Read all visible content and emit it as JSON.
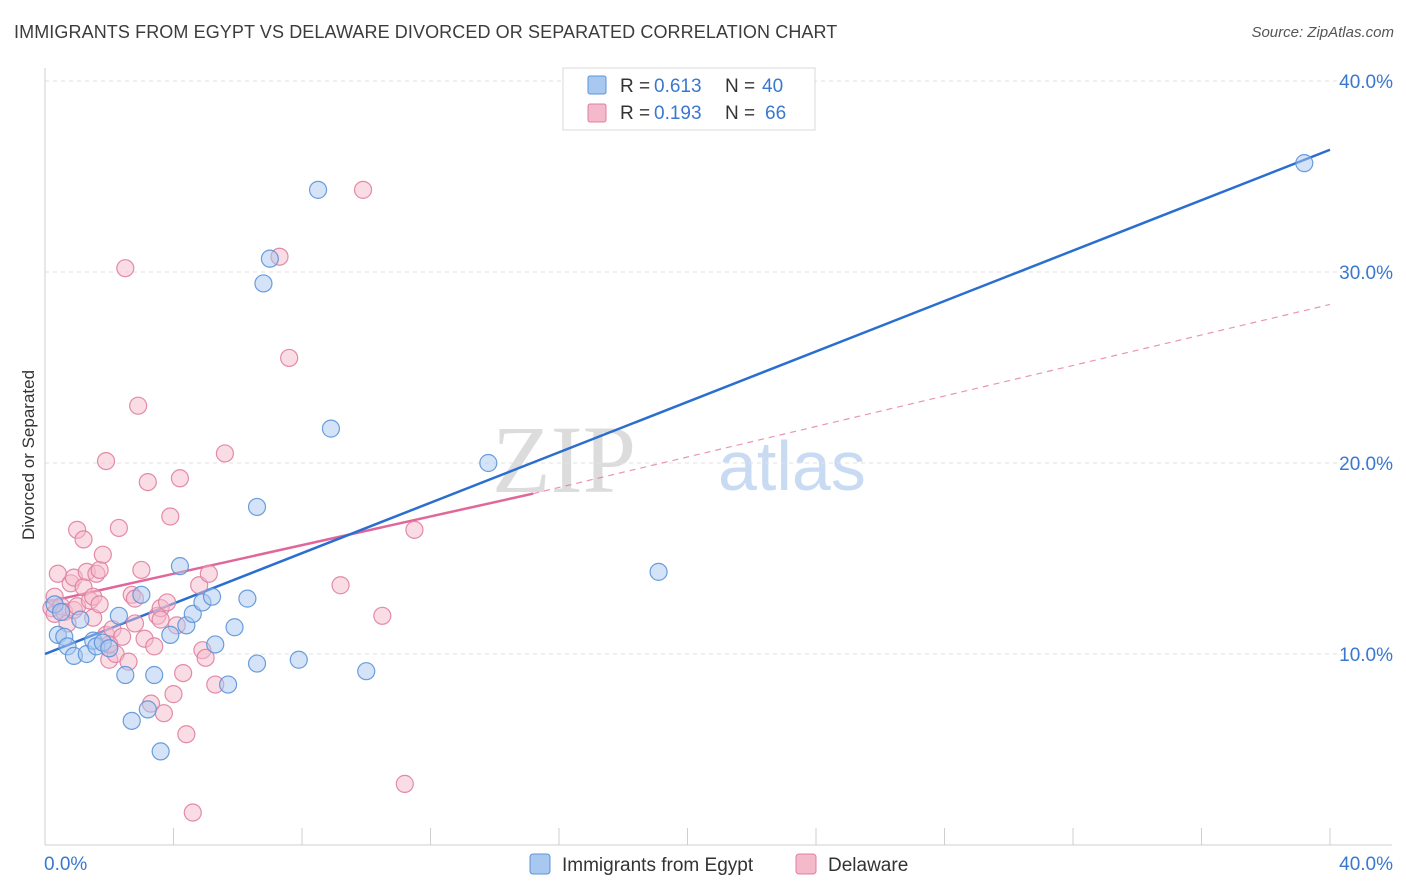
{
  "title": "IMMIGRANTS FROM EGYPT VS DELAWARE DIVORCED OR SEPARATED CORRELATION CHART",
  "source": "Source: ZipAtlas.com",
  "watermark": {
    "zip": "ZIP",
    "atlas": "atlas"
  },
  "colors": {
    "blue_fill": "#a9c8f0",
    "blue_stroke": "#5b93d8",
    "blue_line": "#2a6fcf",
    "pink_fill": "#f5b9cc",
    "pink_stroke": "#e07fa1",
    "pink_line": "#e0679a",
    "axis_text": "#3a78d0",
    "grid": "#e2e2e2"
  },
  "legend_top": [
    {
      "r_label": "R = ",
      "r_value": "0.613",
      "n_label": "N = ",
      "n_value": "40",
      "color": "blue"
    },
    {
      "r_label": "R = ",
      "r_value": "0.193",
      "n_label": "N = ",
      "n_value": "66",
      "color": "pink"
    }
  ],
  "chart_data": {
    "type": "scatter",
    "title": "IMMIGRANTS FROM EGYPT VS DELAWARE DIVORCED OR SEPARATED CORRELATION CHART",
    "xlabel": "",
    "ylabel": "Divorced or Separated",
    "xlim": [
      0,
      40
    ],
    "ylim": [
      0,
      40
    ],
    "x_tick_labels": [
      "0.0%",
      "40.0%"
    ],
    "y_tick_labels": [
      "10.0%",
      "20.0%",
      "30.0%",
      "40.0%"
    ],
    "y_ticks": [
      10,
      20,
      30,
      40
    ],
    "grid": true,
    "legend_position": "bottom-center",
    "series": [
      {
        "name": "Immigrants from Egypt",
        "color": "blue",
        "r": 0.613,
        "n": 40,
        "trend": {
          "x": [
            0,
            40
          ],
          "y": [
            10.0,
            36.4
          ],
          "style": "solid"
        },
        "points": [
          [
            0.3,
            12.6
          ],
          [
            0.4,
            11.0
          ],
          [
            0.5,
            12.2
          ],
          [
            0.6,
            10.9
          ],
          [
            0.7,
            10.4
          ],
          [
            0.9,
            9.9
          ],
          [
            1.1,
            11.8
          ],
          [
            1.3,
            10.0
          ],
          [
            1.5,
            10.7
          ],
          [
            1.6,
            10.4
          ],
          [
            1.8,
            10.6
          ],
          [
            2.0,
            10.3
          ],
          [
            2.3,
            12.0
          ],
          [
            2.5,
            8.9
          ],
          [
            2.7,
            6.5
          ],
          [
            3.0,
            13.1
          ],
          [
            3.2,
            7.1
          ],
          [
            3.4,
            8.9
          ],
          [
            3.6,
            4.9
          ],
          [
            3.9,
            11.0
          ],
          [
            4.2,
            14.6
          ],
          [
            4.4,
            11.5
          ],
          [
            4.6,
            12.1
          ],
          [
            4.9,
            12.7
          ],
          [
            5.2,
            13.0
          ],
          [
            5.3,
            10.5
          ],
          [
            5.7,
            8.4
          ],
          [
            5.9,
            11.4
          ],
          [
            6.3,
            12.9
          ],
          [
            6.6,
            17.7
          ],
          [
            6.6,
            9.5
          ],
          [
            6.8,
            29.4
          ],
          [
            7.0,
            30.7
          ],
          [
            7.9,
            9.7
          ],
          [
            8.5,
            34.3
          ],
          [
            8.9,
            21.8
          ],
          [
            10.0,
            9.1
          ],
          [
            13.8,
            20.0
          ],
          [
            19.1,
            14.3
          ],
          [
            39.2,
            35.7
          ]
        ]
      },
      {
        "name": "Delaware",
        "color": "pink",
        "r": 0.193,
        "n": 66,
        "trend": {
          "x": [
            0,
            15.2
          ],
          "y": [
            12.7,
            18.4
          ],
          "style": "solid",
          "extension": {
            "x": [
              15.2,
              40
            ],
            "y": [
              18.4,
              28.3
            ],
            "style": "dashed"
          }
        },
        "points": [
          [
            0.2,
            12.4
          ],
          [
            0.3,
            13.0
          ],
          [
            0.3,
            12.1
          ],
          [
            0.4,
            14.2
          ],
          [
            0.5,
            12.5
          ],
          [
            0.6,
            12.2
          ],
          [
            0.7,
            11.6
          ],
          [
            0.8,
            13.7
          ],
          [
            0.9,
            14.0
          ],
          [
            0.9,
            12.3
          ],
          [
            1.0,
            16.5
          ],
          [
            1.0,
            12.5
          ],
          [
            1.2,
            13.5
          ],
          [
            1.2,
            16.0
          ],
          [
            1.3,
            14.3
          ],
          [
            1.4,
            12.8
          ],
          [
            1.5,
            11.9
          ],
          [
            1.5,
            13.0
          ],
          [
            1.6,
            14.2
          ],
          [
            1.7,
            12.6
          ],
          [
            1.7,
            14.4
          ],
          [
            1.8,
            15.2
          ],
          [
            1.9,
            11.0
          ],
          [
            1.9,
            20.1
          ],
          [
            2.0,
            9.7
          ],
          [
            2.1,
            11.3
          ],
          [
            2.2,
            10.0
          ],
          [
            2.3,
            16.6
          ],
          [
            2.4,
            10.9
          ],
          [
            2.5,
            30.2
          ],
          [
            2.6,
            9.6
          ],
          [
            2.7,
            13.1
          ],
          [
            2.8,
            11.6
          ],
          [
            2.9,
            23.0
          ],
          [
            3.0,
            14.4
          ],
          [
            3.1,
            10.8
          ],
          [
            3.2,
            19.0
          ],
          [
            3.3,
            7.4
          ],
          [
            3.4,
            10.4
          ],
          [
            3.5,
            12.0
          ],
          [
            3.6,
            12.4
          ],
          [
            3.6,
            11.8
          ],
          [
            3.7,
            6.9
          ],
          [
            3.8,
            12.7
          ],
          [
            3.9,
            17.2
          ],
          [
            4.0,
            7.9
          ],
          [
            4.1,
            11.5
          ],
          [
            4.2,
            19.2
          ],
          [
            4.3,
            9.0
          ],
          [
            4.4,
            5.8
          ],
          [
            4.6,
            1.7
          ],
          [
            4.8,
            13.6
          ],
          [
            4.9,
            10.2
          ],
          [
            5.0,
            9.8
          ],
          [
            5.1,
            14.2
          ],
          [
            5.3,
            8.4
          ],
          [
            5.6,
            20.5
          ],
          [
            7.3,
            30.8
          ],
          [
            7.6,
            25.5
          ],
          [
            9.2,
            13.6
          ],
          [
            9.9,
            34.3
          ],
          [
            10.5,
            12.0
          ],
          [
            11.2,
            3.2
          ],
          [
            11.5,
            16.5
          ],
          [
            2.0,
            10.5
          ],
          [
            2.8,
            12.9
          ]
        ]
      }
    ]
  }
}
